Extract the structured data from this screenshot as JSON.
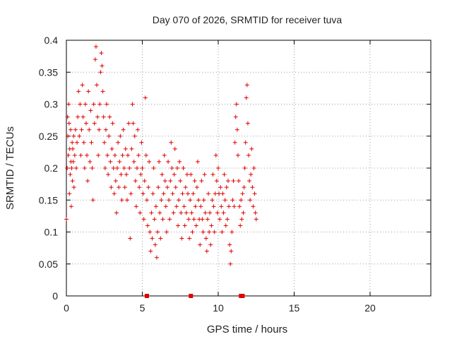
{
  "chart_data": {
    "type": "scatter",
    "title": "Day 070 of 2026, SRMTID for receiver tuva",
    "xlabel": "GPS time / hours",
    "ylabel": "SRMTID / TECUs",
    "xlim": [
      0,
      24
    ],
    "ylim": [
      0,
      0.4
    ],
    "xticks": [
      0,
      5,
      10,
      15,
      20
    ],
    "yticks": [
      0,
      0.05,
      0.1,
      0.15,
      0.2,
      0.25,
      0.3,
      0.35,
      0.4
    ],
    "ytick_labels": [
      "0",
      "0.05",
      "0.1",
      "0.15",
      "0.2",
      "0.25",
      "0.3",
      "0.35",
      "0.4"
    ],
    "grid": true,
    "marker": "+",
    "color": "#e00000",
    "zero_points_x": [
      5.3,
      8.2,
      11.5,
      11.6
    ],
    "series": [
      {
        "points": [
          [
            0.0,
            0.12
          ],
          [
            0.05,
            0.2
          ],
          [
            0.08,
            0.28
          ],
          [
            0.1,
            0.25
          ],
          [
            0.12,
            0.22
          ],
          [
            0.15,
            0.3
          ],
          [
            0.18,
            0.27
          ],
          [
            0.2,
            0.16
          ],
          [
            0.22,
            0.23
          ],
          [
            0.25,
            0.19
          ],
          [
            0.28,
            0.26
          ],
          [
            0.3,
            0.21
          ],
          [
            0.32,
            0.14
          ],
          [
            0.35,
            0.2
          ],
          [
            0.38,
            0.24
          ],
          [
            0.4,
            0.18
          ],
          [
            0.42,
            0.23
          ],
          [
            0.45,
            0.21
          ],
          [
            0.48,
            0.25
          ],
          [
            0.5,
            0.17
          ],
          [
            0.55,
            0.22
          ],
          [
            0.6,
            0.26
          ],
          [
            0.65,
            0.2
          ],
          [
            0.7,
            0.24
          ],
          [
            0.75,
            0.28
          ],
          [
            0.8,
            0.32
          ],
          [
            0.85,
            0.25
          ],
          [
            0.9,
            0.3
          ],
          [
            0.95,
            0.22
          ],
          [
            1.0,
            0.26
          ],
          [
            1.05,
            0.33
          ],
          [
            1.1,
            0.28
          ],
          [
            1.15,
            0.24
          ],
          [
            1.2,
            0.2
          ],
          [
            1.25,
            0.3
          ],
          [
            1.3,
            0.27
          ],
          [
            1.35,
            0.22
          ],
          [
            1.4,
            0.18
          ],
          [
            1.45,
            0.32
          ],
          [
            1.5,
            0.26
          ],
          [
            1.55,
            0.21
          ],
          [
            1.6,
            0.29
          ],
          [
            1.65,
            0.24
          ],
          [
            1.7,
            0.2
          ],
          [
            1.75,
            0.15
          ],
          [
            1.8,
            0.3
          ],
          [
            1.85,
            0.27
          ],
          [
            1.9,
            0.37
          ],
          [
            1.95,
            0.39
          ],
          [
            2.0,
            0.33
          ],
          [
            2.05,
            0.28
          ],
          [
            2.1,
            0.22
          ],
          [
            2.15,
            0.26
          ],
          [
            2.2,
            0.3
          ],
          [
            2.25,
            0.35
          ],
          [
            2.3,
            0.38
          ],
          [
            2.35,
            0.36
          ],
          [
            2.4,
            0.32
          ],
          [
            2.45,
            0.28
          ],
          [
            2.5,
            0.24
          ],
          [
            2.55,
            0.2
          ],
          [
            2.6,
            0.26
          ],
          [
            2.65,
            0.3
          ],
          [
            2.7,
            0.22
          ],
          [
            2.75,
            0.19
          ],
          [
            2.8,
            0.25
          ],
          [
            2.85,
            0.28
          ],
          [
            2.9,
            0.21
          ],
          [
            2.95,
            0.17
          ],
          [
            3.0,
            0.23
          ],
          [
            3.05,
            0.27
          ],
          [
            3.1,
            0.2
          ],
          [
            3.15,
            0.16
          ],
          [
            3.2,
            0.22
          ],
          [
            3.25,
            0.18
          ],
          [
            3.3,
            0.13
          ],
          [
            3.35,
            0.2
          ],
          [
            3.4,
            0.24
          ],
          [
            3.45,
            0.17
          ],
          [
            3.5,
            0.21
          ],
          [
            3.55,
            0.25
          ],
          [
            3.6,
            0.19
          ],
          [
            3.65,
            0.15
          ],
          [
            3.7,
            0.22
          ],
          [
            3.75,
            0.26
          ],
          [
            3.8,
            0.2
          ],
          [
            3.85,
            0.17
          ],
          [
            3.9,
            0.23
          ],
          [
            3.95,
            0.19
          ],
          [
            4.0,
            0.15
          ],
          [
            4.05,
            0.22
          ],
          [
            4.1,
            0.27
          ],
          [
            4.15,
            0.2
          ],
          [
            4.2,
            0.09
          ],
          [
            4.25,
            0.16
          ],
          [
            4.3,
            0.23
          ],
          [
            4.35,
            0.3
          ],
          [
            4.4,
            0.27
          ],
          [
            4.45,
            0.21
          ],
          [
            4.5,
            0.25
          ],
          [
            4.55,
            0.18
          ],
          [
            4.6,
            0.14
          ],
          [
            4.65,
            0.2
          ],
          [
            4.7,
            0.26
          ],
          [
            4.75,
            0.22
          ],
          [
            4.8,
            0.17
          ],
          [
            4.85,
            0.13
          ],
          [
            4.9,
            0.19
          ],
          [
            4.95,
            0.24
          ],
          [
            5.0,
            0.2
          ],
          [
            5.05,
            0.16
          ],
          [
            5.1,
            0.12
          ],
          [
            5.15,
            0.18
          ],
          [
            5.2,
            0.31
          ],
          [
            5.25,
            0.22
          ],
          [
            5.3,
            0.15
          ],
          [
            5.35,
            0.11
          ],
          [
            5.4,
            0.17
          ],
          [
            5.45,
            0.21
          ],
          [
            5.5,
            0.1
          ],
          [
            5.55,
            0.07
          ],
          [
            5.6,
            0.13
          ],
          [
            5.65,
            0.09
          ],
          [
            5.7,
            0.16
          ],
          [
            5.75,
            0.2
          ],
          [
            5.8,
            0.12
          ],
          [
            5.85,
            0.08
          ],
          [
            5.9,
            0.14
          ],
          [
            5.95,
            0.06
          ],
          [
            6.0,
            0.1
          ],
          [
            6.05,
            0.17
          ],
          [
            6.1,
            0.21
          ],
          [
            6.15,
            0.13
          ],
          [
            6.2,
            0.09
          ],
          [
            6.25,
            0.15
          ],
          [
            6.3,
            0.19
          ],
          [
            6.35,
            0.12
          ],
          [
            6.4,
            0.16
          ],
          [
            6.45,
            0.22
          ],
          [
            6.5,
            0.18
          ],
          [
            6.55,
            0.14
          ],
          [
            6.6,
            0.1
          ],
          [
            6.65,
            0.17
          ],
          [
            6.7,
            0.21
          ],
          [
            6.75,
            0.15
          ],
          [
            6.8,
            0.12
          ],
          [
            6.85,
            0.18
          ],
          [
            6.9,
            0.24
          ],
          [
            6.95,
            0.2
          ],
          [
            7.0,
            0.16
          ],
          [
            7.05,
            0.13
          ],
          [
            7.1,
            0.19
          ],
          [
            7.15,
            0.23
          ],
          [
            7.2,
            0.17
          ],
          [
            7.25,
            0.14
          ],
          [
            7.3,
            0.2
          ],
          [
            7.35,
            0.11
          ],
          [
            7.4,
            0.15
          ],
          [
            7.45,
            0.21
          ],
          [
            7.5,
            0.18
          ],
          [
            7.55,
            0.13
          ],
          [
            7.6,
            0.09
          ],
          [
            7.65,
            0.16
          ],
          [
            7.7,
            0.2
          ],
          [
            7.75,
            0.14
          ],
          [
            7.8,
            0.11
          ],
          [
            7.85,
            0.17
          ],
          [
            7.9,
            0.13
          ],
          [
            7.95,
            0.19
          ],
          [
            8.0,
            0.16
          ],
          [
            8.05,
            0.12
          ],
          [
            8.1,
            0.09
          ],
          [
            8.15,
            0.15
          ],
          [
            8.2,
            0.19
          ],
          [
            8.25,
            0.13
          ],
          [
            8.3,
            0.1
          ],
          [
            8.35,
            0.16
          ],
          [
            8.4,
            0.12
          ],
          [
            8.45,
            0.18
          ],
          [
            8.5,
            0.14
          ],
          [
            8.55,
            0.11
          ],
          [
            8.6,
            0.17
          ],
          [
            8.65,
            0.21
          ],
          [
            8.7,
            0.15
          ],
          [
            8.75,
            0.12
          ],
          [
            8.8,
            0.08
          ],
          [
            8.85,
            0.14
          ],
          [
            8.9,
            0.18
          ],
          [
            8.95,
            0.12
          ],
          [
            9.0,
            0.1
          ],
          [
            9.05,
            0.15
          ],
          [
            9.1,
            0.19
          ],
          [
            9.15,
            0.13
          ],
          [
            9.2,
            0.09
          ],
          [
            9.25,
            0.07
          ],
          [
            9.3,
            0.12
          ],
          [
            9.35,
            0.16
          ],
          [
            9.4,
            0.1
          ],
          [
            9.45,
            0.13
          ],
          [
            9.5,
            0.08
          ],
          [
            9.55,
            0.11
          ],
          [
            9.6,
            0.15
          ],
          [
            9.65,
            0.19
          ],
          [
            9.7,
            0.14
          ],
          [
            9.75,
            0.1
          ],
          [
            9.8,
            0.16
          ],
          [
            9.85,
            0.22
          ],
          [
            9.9,
            0.18
          ],
          [
            9.95,
            0.13
          ],
          [
            10.0,
            0.2
          ],
          [
            10.05,
            0.16
          ],
          [
            10.1,
            0.12
          ],
          [
            10.15,
            0.17
          ],
          [
            10.2,
            0.14
          ],
          [
            10.25,
            0.1
          ],
          [
            10.3,
            0.16
          ],
          [
            10.35,
            0.13
          ],
          [
            10.4,
            0.19
          ],
          [
            10.45,
            0.15
          ],
          [
            10.5,
            0.11
          ],
          [
            10.55,
            0.17
          ],
          [
            10.6,
            0.12
          ],
          [
            10.65,
            0.18
          ],
          [
            10.7,
            0.14
          ],
          [
            10.75,
            0.08
          ],
          [
            10.8,
            0.05
          ],
          [
            10.85,
            0.07
          ],
          [
            10.9,
            0.1
          ],
          [
            10.95,
            0.15
          ],
          [
            11.0,
            0.18
          ],
          [
            11.05,
            0.14
          ],
          [
            11.1,
            0.24
          ],
          [
            11.15,
            0.28
          ],
          [
            11.2,
            0.3
          ],
          [
            11.25,
            0.26
          ],
          [
            11.3,
            0.22
          ],
          [
            11.35,
            0.18
          ],
          [
            11.4,
            0.14
          ],
          [
            11.45,
            0.11
          ],
          [
            11.5,
            0.15
          ],
          [
            11.55,
            0.12
          ],
          [
            11.6,
            0.16
          ],
          [
            11.65,
            0.13
          ],
          [
            11.7,
            0.17
          ],
          [
            11.75,
            0.2
          ],
          [
            11.8,
            0.24
          ],
          [
            11.85,
            0.31
          ],
          [
            11.9,
            0.33
          ],
          [
            11.95,
            0.27
          ],
          [
            12.0,
            0.22
          ],
          [
            12.05,
            0.18
          ],
          [
            12.1,
            0.15
          ],
          [
            12.15,
            0.19
          ],
          [
            12.2,
            0.23
          ],
          [
            12.25,
            0.17
          ],
          [
            12.3,
            0.14
          ],
          [
            12.35,
            0.2
          ],
          [
            12.4,
            0.16
          ],
          [
            12.45,
            0.13
          ],
          [
            12.5,
            0.12
          ]
        ]
      }
    ]
  }
}
